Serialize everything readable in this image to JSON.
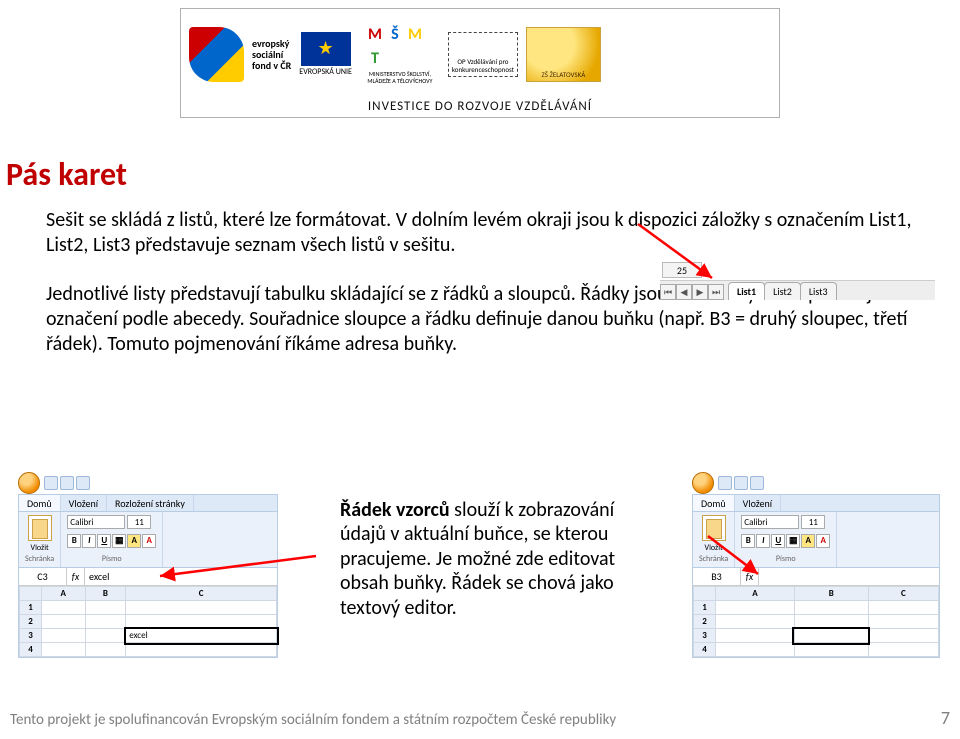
{
  "banner": {
    "esf_lines": [
      "evropský",
      "sociální",
      "fond v ČR"
    ],
    "eu_label": "EVROPSKÁ UNIE",
    "msmt_letters": [
      "M",
      "Š",
      "M",
      "T"
    ],
    "msmt_sub": "MINISTERSTVO ŠKOLSTVÍ, MLÁDEŽE A TĚLOVÝCHOVY",
    "opvk": "OP Vzdělávání pro konkurenceschopnost",
    "zelat": "ZŠ ŽELATOVSKÁ",
    "subtitle": "INVESTICE DO ROZVOJE VZDĚLÁVÁNÍ"
  },
  "title": "Pás karet",
  "para1": "Sešit se skládá z listů, které lze formátovat. V dolním levém okraji jsou k dispozici záložky s označením List1, List2, List3 představuje seznam všech listů v sešitu.",
  "para2": "Jednotlivé listy představují tabulku skládající se z řádků a sloupců. Řádky jsou očíslovány a sloupce mají označení podle abecedy. Souřadnice sloupce a řádku definuje danou buňku (např. B3 = druhý sloupec, třetí řádek). Tomuto pojmenování říkáme adresa buňky.",
  "sheet_tabs": {
    "row": "25",
    "tabs": [
      "List1",
      "List2",
      "List3"
    ]
  },
  "ribbon": {
    "tabs": [
      "Domů",
      "Vložení",
      "Rozložení stránky"
    ],
    "paste_label": "Vložit",
    "clip_label": "Schránka",
    "font_name": "Calibri",
    "font_size": "11",
    "font_label": "Písmo",
    "cols": [
      "A",
      "B",
      "C"
    ],
    "rows": [
      "1",
      "2",
      "3",
      "4"
    ]
  },
  "fig_left": {
    "namebox": "C3",
    "fbar": "excel",
    "cell_value": "excel",
    "sel_col": 2,
    "sel_row": 2
  },
  "fig_right": {
    "namebox": "B3",
    "fbar": "",
    "sel_col": 1,
    "sel_row": 2
  },
  "expl": "Řádek vzorců slouží k zobrazování údajů v aktuální buňce, se kterou pracujeme. Je možné zde editovat obsah buňky. Řádek se chová jako textový editor.",
  "footer": "Tento projekt je spolufinancován Evropským sociálním fondem a státním rozpočtem České republiky",
  "pagenum": "7",
  "colors": {
    "title": "#c00000",
    "arrow": "#ff0000",
    "footer": "#808080"
  }
}
